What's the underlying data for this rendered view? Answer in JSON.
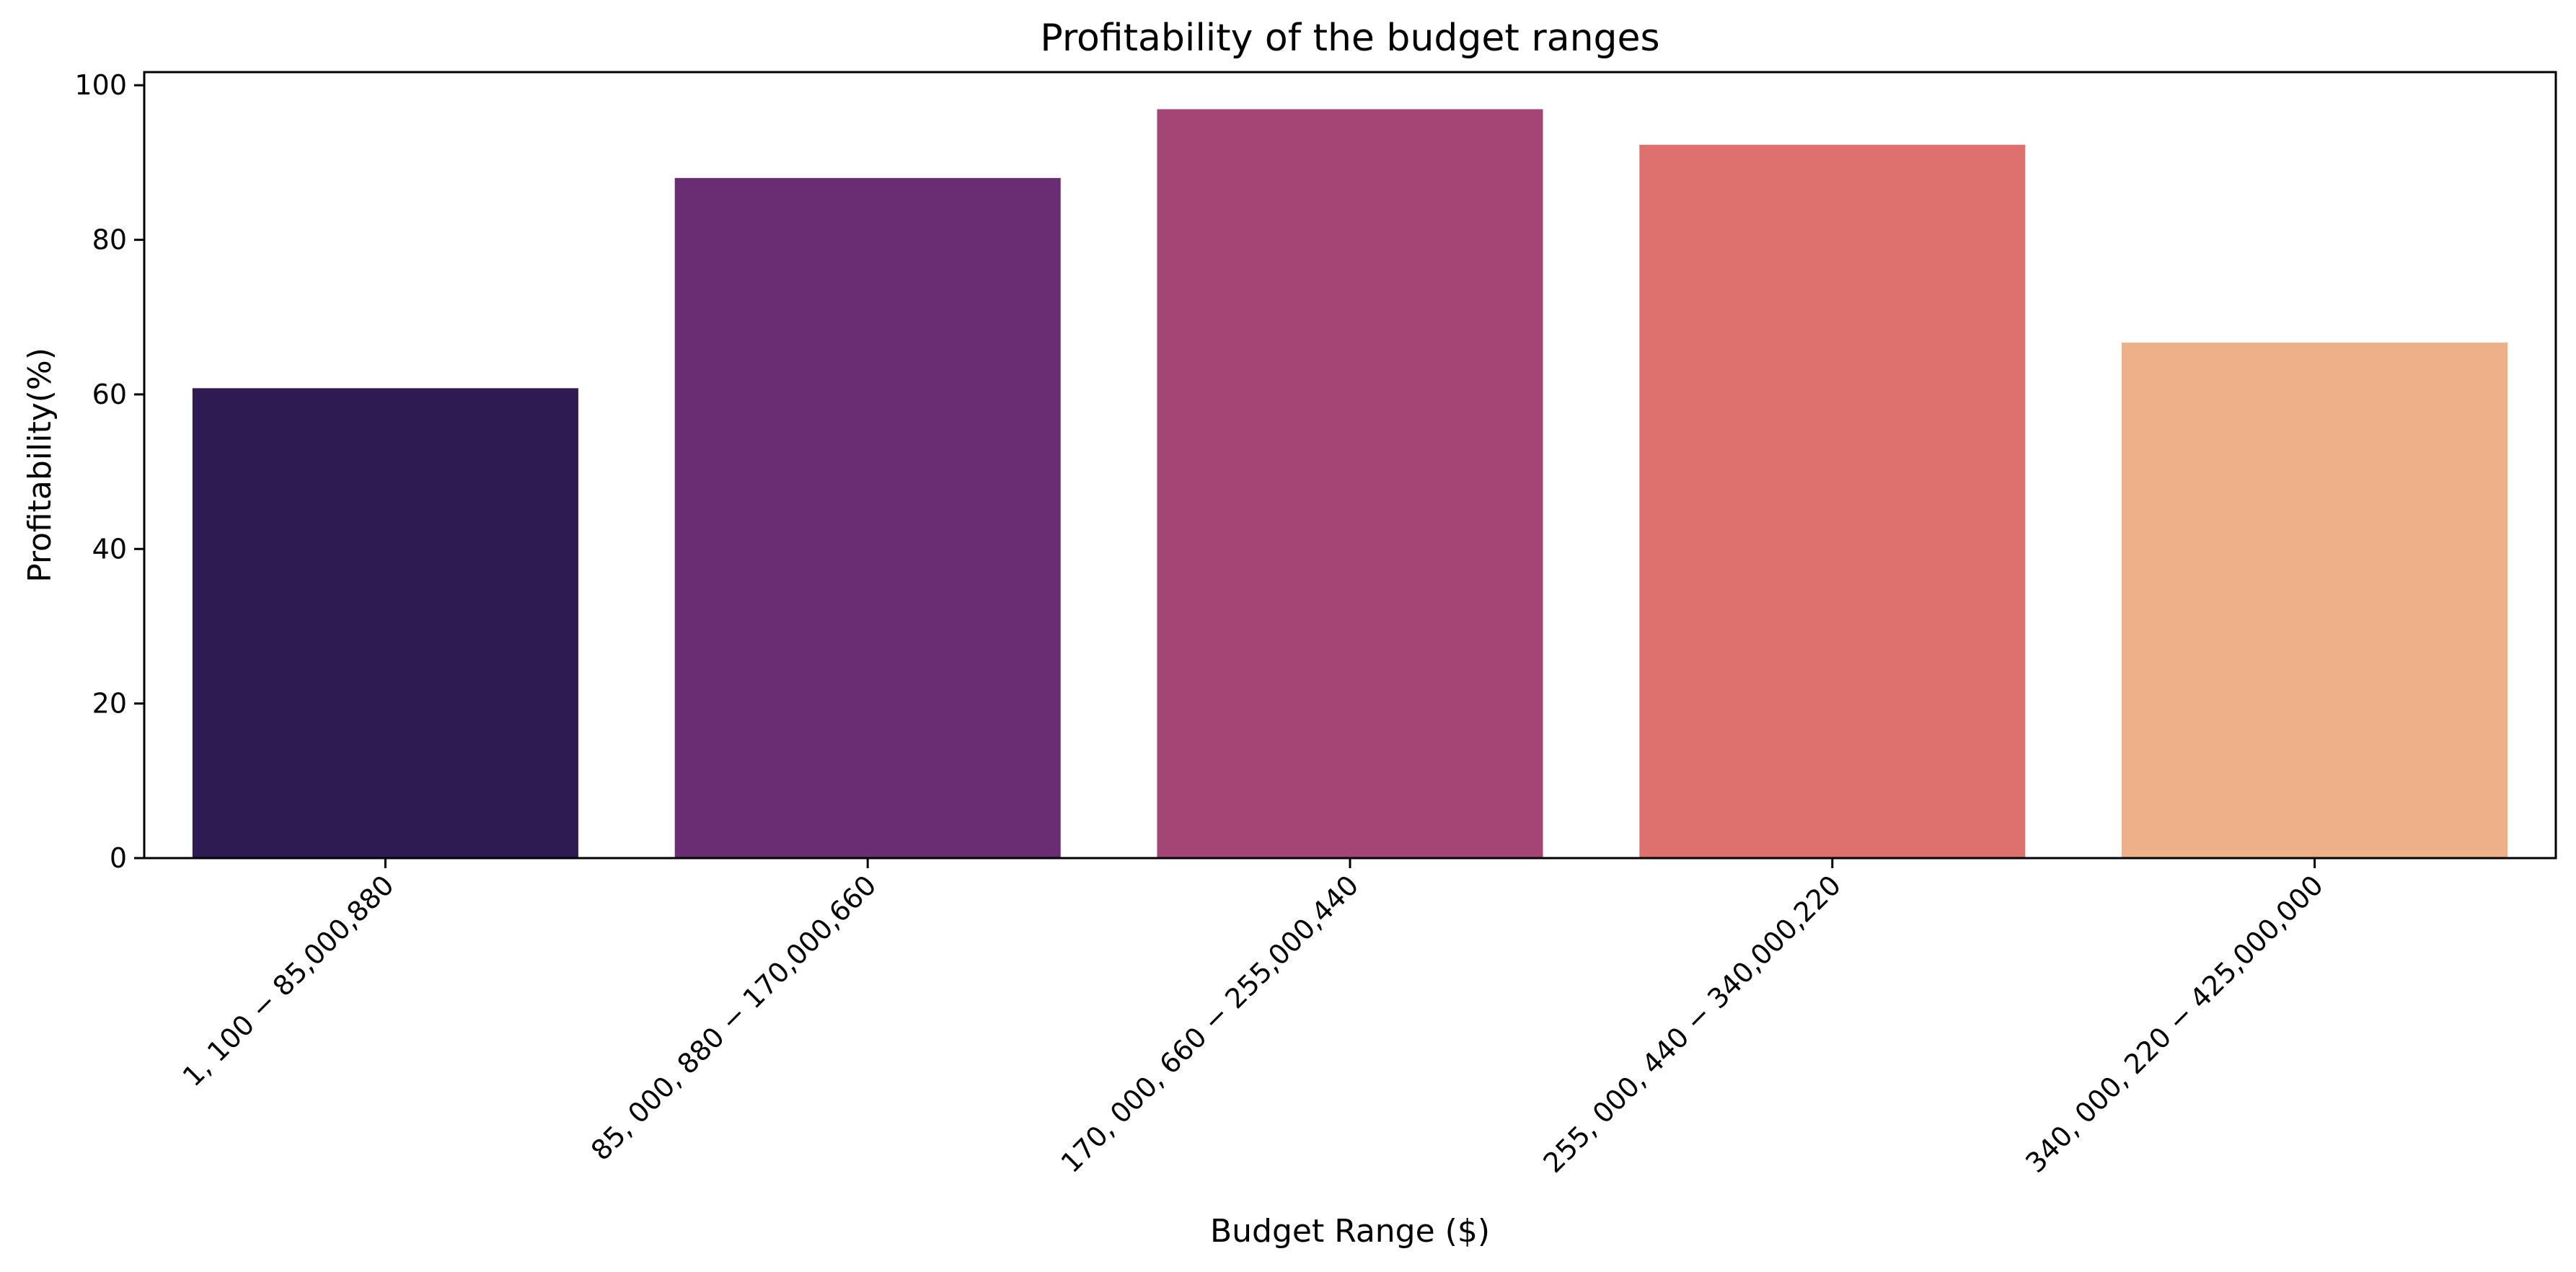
{
  "chart_data": {
    "type": "bar",
    "title": "Profitability of the budget ranges",
    "xlabel": "Budget Range ($)",
    "ylabel": "Profitability(%)",
    "categories": [
      "1, 100 − 85,000,880",
      "85, 000, 880 − 170,000,660",
      "170, 000, 660 − 255,000,440",
      "255, 000, 440 − 340,000,220",
      "340, 000, 220 − 425,000,000"
    ],
    "values": [
      60.8,
      88.0,
      96.9,
      92.3,
      66.7
    ],
    "colors": [
      "#2e1b52",
      "#6a2c73",
      "#a54576",
      "#de716e",
      "#edb088"
    ],
    "ylim": [
      0,
      101.7
    ],
    "yticks": [
      0,
      20,
      40,
      60,
      80,
      100
    ],
    "grid": false,
    "legend": "none"
  }
}
